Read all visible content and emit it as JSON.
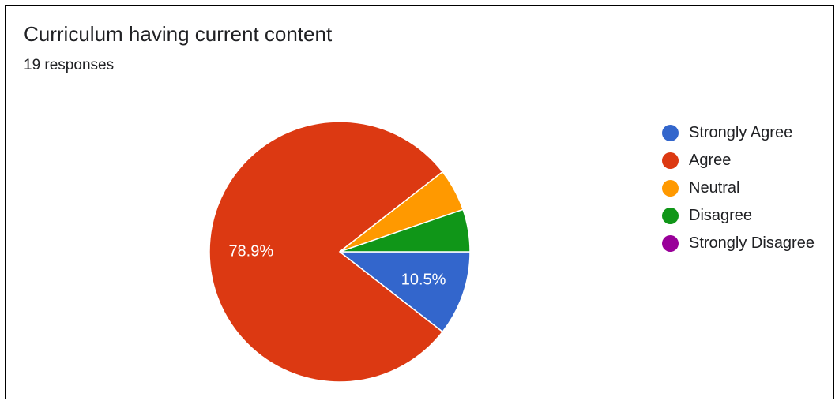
{
  "header": {
    "title": "Curriculum having current content",
    "subtitle": "19 responses"
  },
  "colors": {
    "strongly_agree": "#3366cc",
    "agree": "#dc3912",
    "neutral": "#ff9900",
    "disagree": "#109618",
    "strongly_disagree": "#990099"
  },
  "chart_data": {
    "type": "pie",
    "title": "Curriculum having current content",
    "subtitle": "19 responses",
    "legend_position": "right",
    "start": "3 o'clock, clockwise",
    "slices": [
      {
        "label": "Strongly Agree",
        "value": 2,
        "percent": 10.5,
        "percent_label": "10.5%",
        "color": "#3366cc",
        "show_label": true
      },
      {
        "label": "Agree",
        "value": 15,
        "percent": 78.9,
        "percent_label": "78.9%",
        "color": "#dc3912",
        "show_label": true
      },
      {
        "label": "Neutral",
        "value": 1,
        "percent": 5.3,
        "percent_label": "",
        "color": "#ff9900",
        "show_label": false
      },
      {
        "label": "Disagree",
        "value": 1,
        "percent": 5.3,
        "percent_label": "",
        "color": "#109618",
        "show_label": false
      },
      {
        "label": "Strongly Disagree",
        "value": 0,
        "percent": 0,
        "percent_label": "",
        "color": "#990099",
        "show_label": false
      }
    ]
  }
}
